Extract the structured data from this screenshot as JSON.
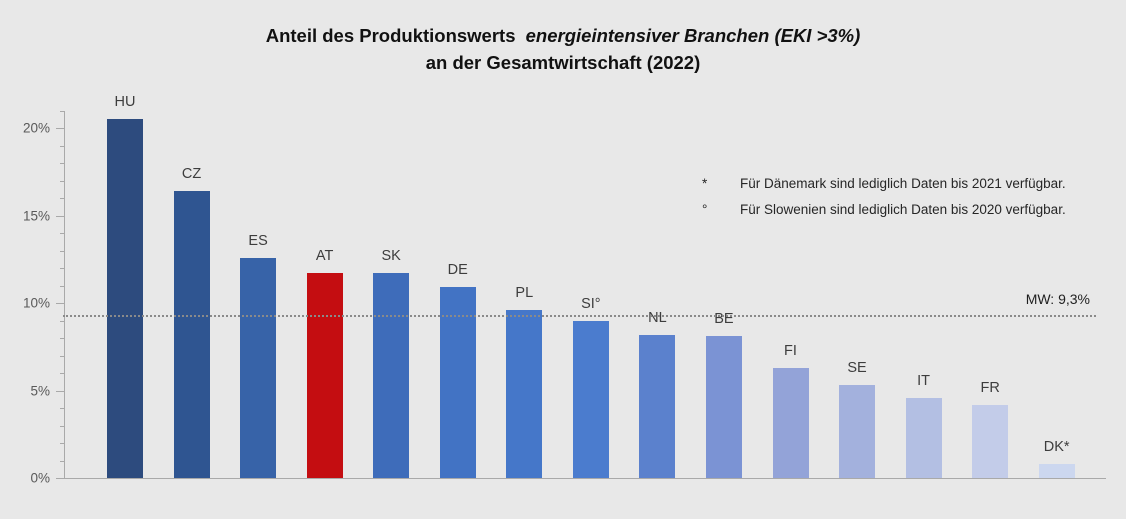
{
  "title": {
    "line1_regular": "Anteil des Produktionswerts",
    "line1_italic": "energieintensiver Branchen (EKI >3%)",
    "line2": "an der Gesamtwirtschaft (2022)"
  },
  "footnotes": [
    {
      "marker": "*",
      "text": "Für Dänemark sind lediglich Daten bis 2021 verfügbar."
    },
    {
      "marker": "°",
      "text": "Für Slowenien sind lediglich Daten bis 2020 verfügbar."
    }
  ],
  "mean_line": {
    "label": "MW: 9,3%",
    "value": 9.3
  },
  "chart_data": {
    "type": "bar",
    "title": "Anteil des Produktionswerts energieintensiver Branchen (EKI >3%) an der Gesamtwirtschaft (2022)",
    "categories": [
      "HU",
      "CZ",
      "ES",
      "AT",
      "SK",
      "DE",
      "PL",
      "SI°",
      "NL",
      "BE",
      "FI",
      "SE",
      "IT",
      "FR",
      "DK*"
    ],
    "values": [
      20.5,
      16.4,
      12.6,
      11.7,
      11.7,
      10.9,
      9.6,
      9.0,
      8.2,
      8.1,
      6.3,
      5.3,
      4.6,
      4.2,
      0.8
    ],
    "bar_colors": [
      "#2d4b7e",
      "#2f5591",
      "#3763a8",
      "#c40d11",
      "#3e6cba",
      "#4273c4",
      "#4577c9",
      "#4b7cce",
      "#5b81cd",
      "#7b93d4",
      "#93a3d8",
      "#a3b1dd",
      "#b3bfe3",
      "#c3cce9",
      "#ccd7ef"
    ],
    "highlight_category": "AT",
    "mean": 9.3,
    "xlabel": "",
    "ylabel": "",
    "ylim": [
      0,
      21
    ],
    "yticks": [
      {
        "value": 0,
        "label": "0%"
      },
      {
        "value": 5,
        "label": "5%"
      },
      {
        "value": 10,
        "label": "10%"
      },
      {
        "value": 15,
        "label": "15%"
      },
      {
        "value": 20,
        "label": "20%"
      }
    ],
    "minor_tick_step": 1,
    "grid": false,
    "legend": false
  },
  "colors": {
    "background": "#e8e8e8",
    "axis": "#a9a9a9",
    "mean_line": "#8a8a8a",
    "highlight": "#c40d11",
    "title_text": "#111111",
    "tick_label_text": "#595959",
    "bar_label_text": "#3d3d3d"
  }
}
